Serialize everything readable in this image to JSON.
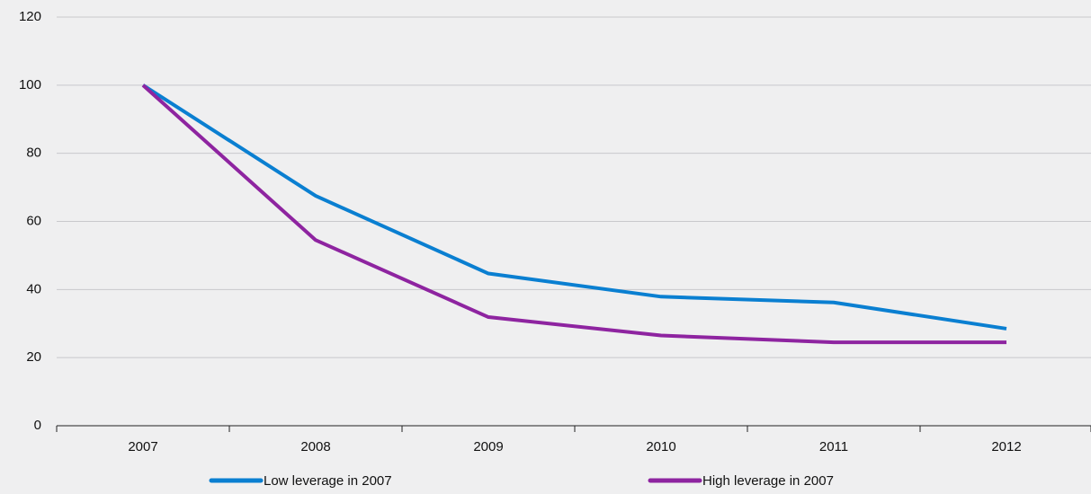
{
  "chart_data": {
    "type": "line",
    "categories": [
      "2007",
      "2008",
      "2009",
      "2010",
      "2011",
      "2012"
    ],
    "series": [
      {
        "name": "Low leverage in 2007",
        "color": "#0a7fd1",
        "values": [
          100,
          67.5,
          44.7,
          37.9,
          36.2,
          28.5
        ]
      },
      {
        "name": "High leverage in 2007",
        "color": "#8e24a0",
        "values": [
          100,
          54.5,
          31.9,
          26.5,
          24.5,
          24.5
        ]
      }
    ],
    "ylim": [
      0,
      120
    ],
    "yticks": [
      0,
      20,
      40,
      60,
      80,
      100,
      120
    ],
    "grid": true,
    "legend": "bottom"
  }
}
